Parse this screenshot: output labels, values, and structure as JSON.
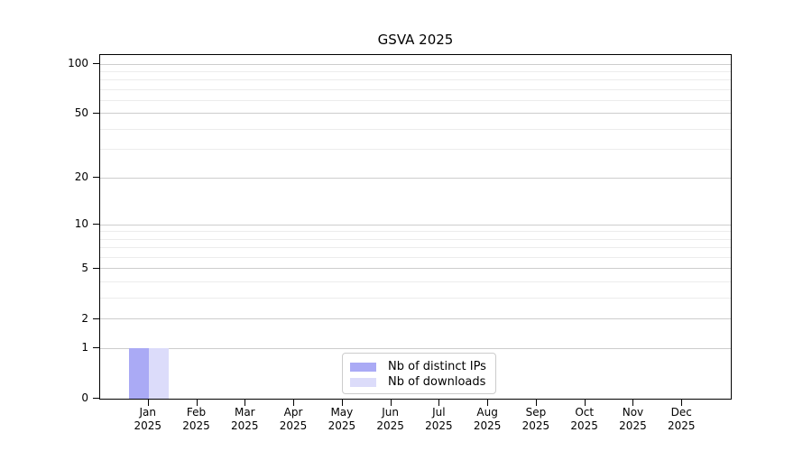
{
  "chart_data": {
    "type": "bar",
    "title": "GSVA 2025",
    "categories": [
      {
        "month": "Jan",
        "year": "2025"
      },
      {
        "month": "Feb",
        "year": "2025"
      },
      {
        "month": "Mar",
        "year": "2025"
      },
      {
        "month": "Apr",
        "year": "2025"
      },
      {
        "month": "May",
        "year": "2025"
      },
      {
        "month": "Jun",
        "year": "2025"
      },
      {
        "month": "Jul",
        "year": "2025"
      },
      {
        "month": "Aug",
        "year": "2025"
      },
      {
        "month": "Sep",
        "year": "2025"
      },
      {
        "month": "Oct",
        "year": "2025"
      },
      {
        "month": "Nov",
        "year": "2025"
      },
      {
        "month": "Dec",
        "year": "2025"
      }
    ],
    "series": [
      {
        "name": "Nb of distinct IPs",
        "color": "#aaaaf5",
        "values": [
          1,
          0,
          0,
          0,
          0,
          0,
          0,
          0,
          0,
          0,
          0,
          0
        ]
      },
      {
        "name": "Nb of downloads",
        "color": "#dcdcfa",
        "values": [
          1,
          0,
          0,
          0,
          0,
          0,
          0,
          0,
          0,
          0,
          0,
          0
        ]
      }
    ],
    "y_axis": {
      "scale": "log1p",
      "min": 0,
      "max": 113.4,
      "major_ticks": [
        0,
        1,
        2,
        5,
        10,
        20,
        50,
        100
      ],
      "minor_gridlines": [
        3,
        4,
        6,
        7,
        8,
        9,
        30,
        40,
        60,
        70,
        80,
        90
      ]
    },
    "legend": {
      "position": "bottom-center-inside"
    },
    "colors": {
      "major_grid": "#cdcdcd",
      "minor_grid": "#ececec",
      "spine": "#000000",
      "background": "#ffffff"
    }
  }
}
